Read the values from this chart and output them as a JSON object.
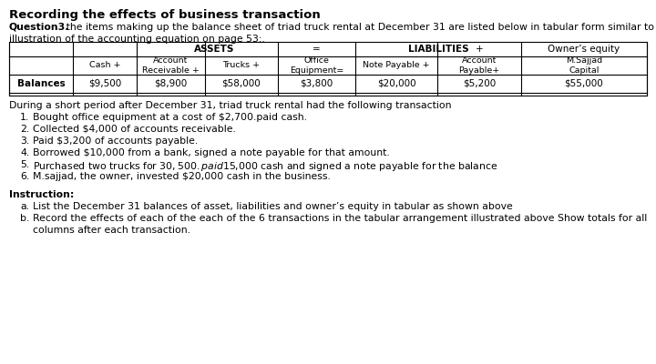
{
  "title": "Recording the effects of business transaction",
  "question_bold": "Question3.",
  "question_rest": " : the items making up the balance sheet of triad truck rental at December 31 are listed below in tabular form similar to the",
  "question_line2": "illustration of the accounting equation on page 53:.",
  "col_headers_row1": [
    "ASSETS",
    "=",
    "LIABILITIES",
    "+",
    "Owner’s equity"
  ],
  "col_headers_row2": [
    "Cash +",
    "Account\nReceivable +",
    "Trucks +",
    "Office\nEquipment=",
    "Note Payable +",
    "Account\nPayable+",
    "M.Sajjad\nCapital"
  ],
  "balances_label": "Balances",
  "balances_values": [
    "$9,500",
    "$8,900",
    "$58,000",
    "$3,800",
    "$20,000",
    "$5,200",
    "$55,000"
  ],
  "transactions_header": "During a short period after December 31, triad truck rental had the following transaction",
  "transactions": [
    "Bought office equipment at a cost of $2,700.paid cash.",
    "Collected $4,000 of accounts receivable.",
    "Paid $3,200 of accounts payable.",
    "Borrowed $10,000 from a bank, signed a note payable for that amount.",
    "Purchased two trucks for $30,500.paid $15,000 cash and signed a note payable for the balance",
    "M.sajjad, the owner, invested $20,000 cash in the business."
  ],
  "instruction_header": "Instruction:",
  "instructions": [
    [
      "a.",
      "List the December 31 balances of asset, liabilities and owner’s equity in tabular as shown above"
    ],
    [
      "b.",
      "Record the effects of each of the each of the 6 transactions in the tabular arrangement illustrated above Show totals for all"
    ],
    [
      "",
      "columns after each transaction."
    ]
  ],
  "bg_color": "#ffffff",
  "text_color": "#000000"
}
